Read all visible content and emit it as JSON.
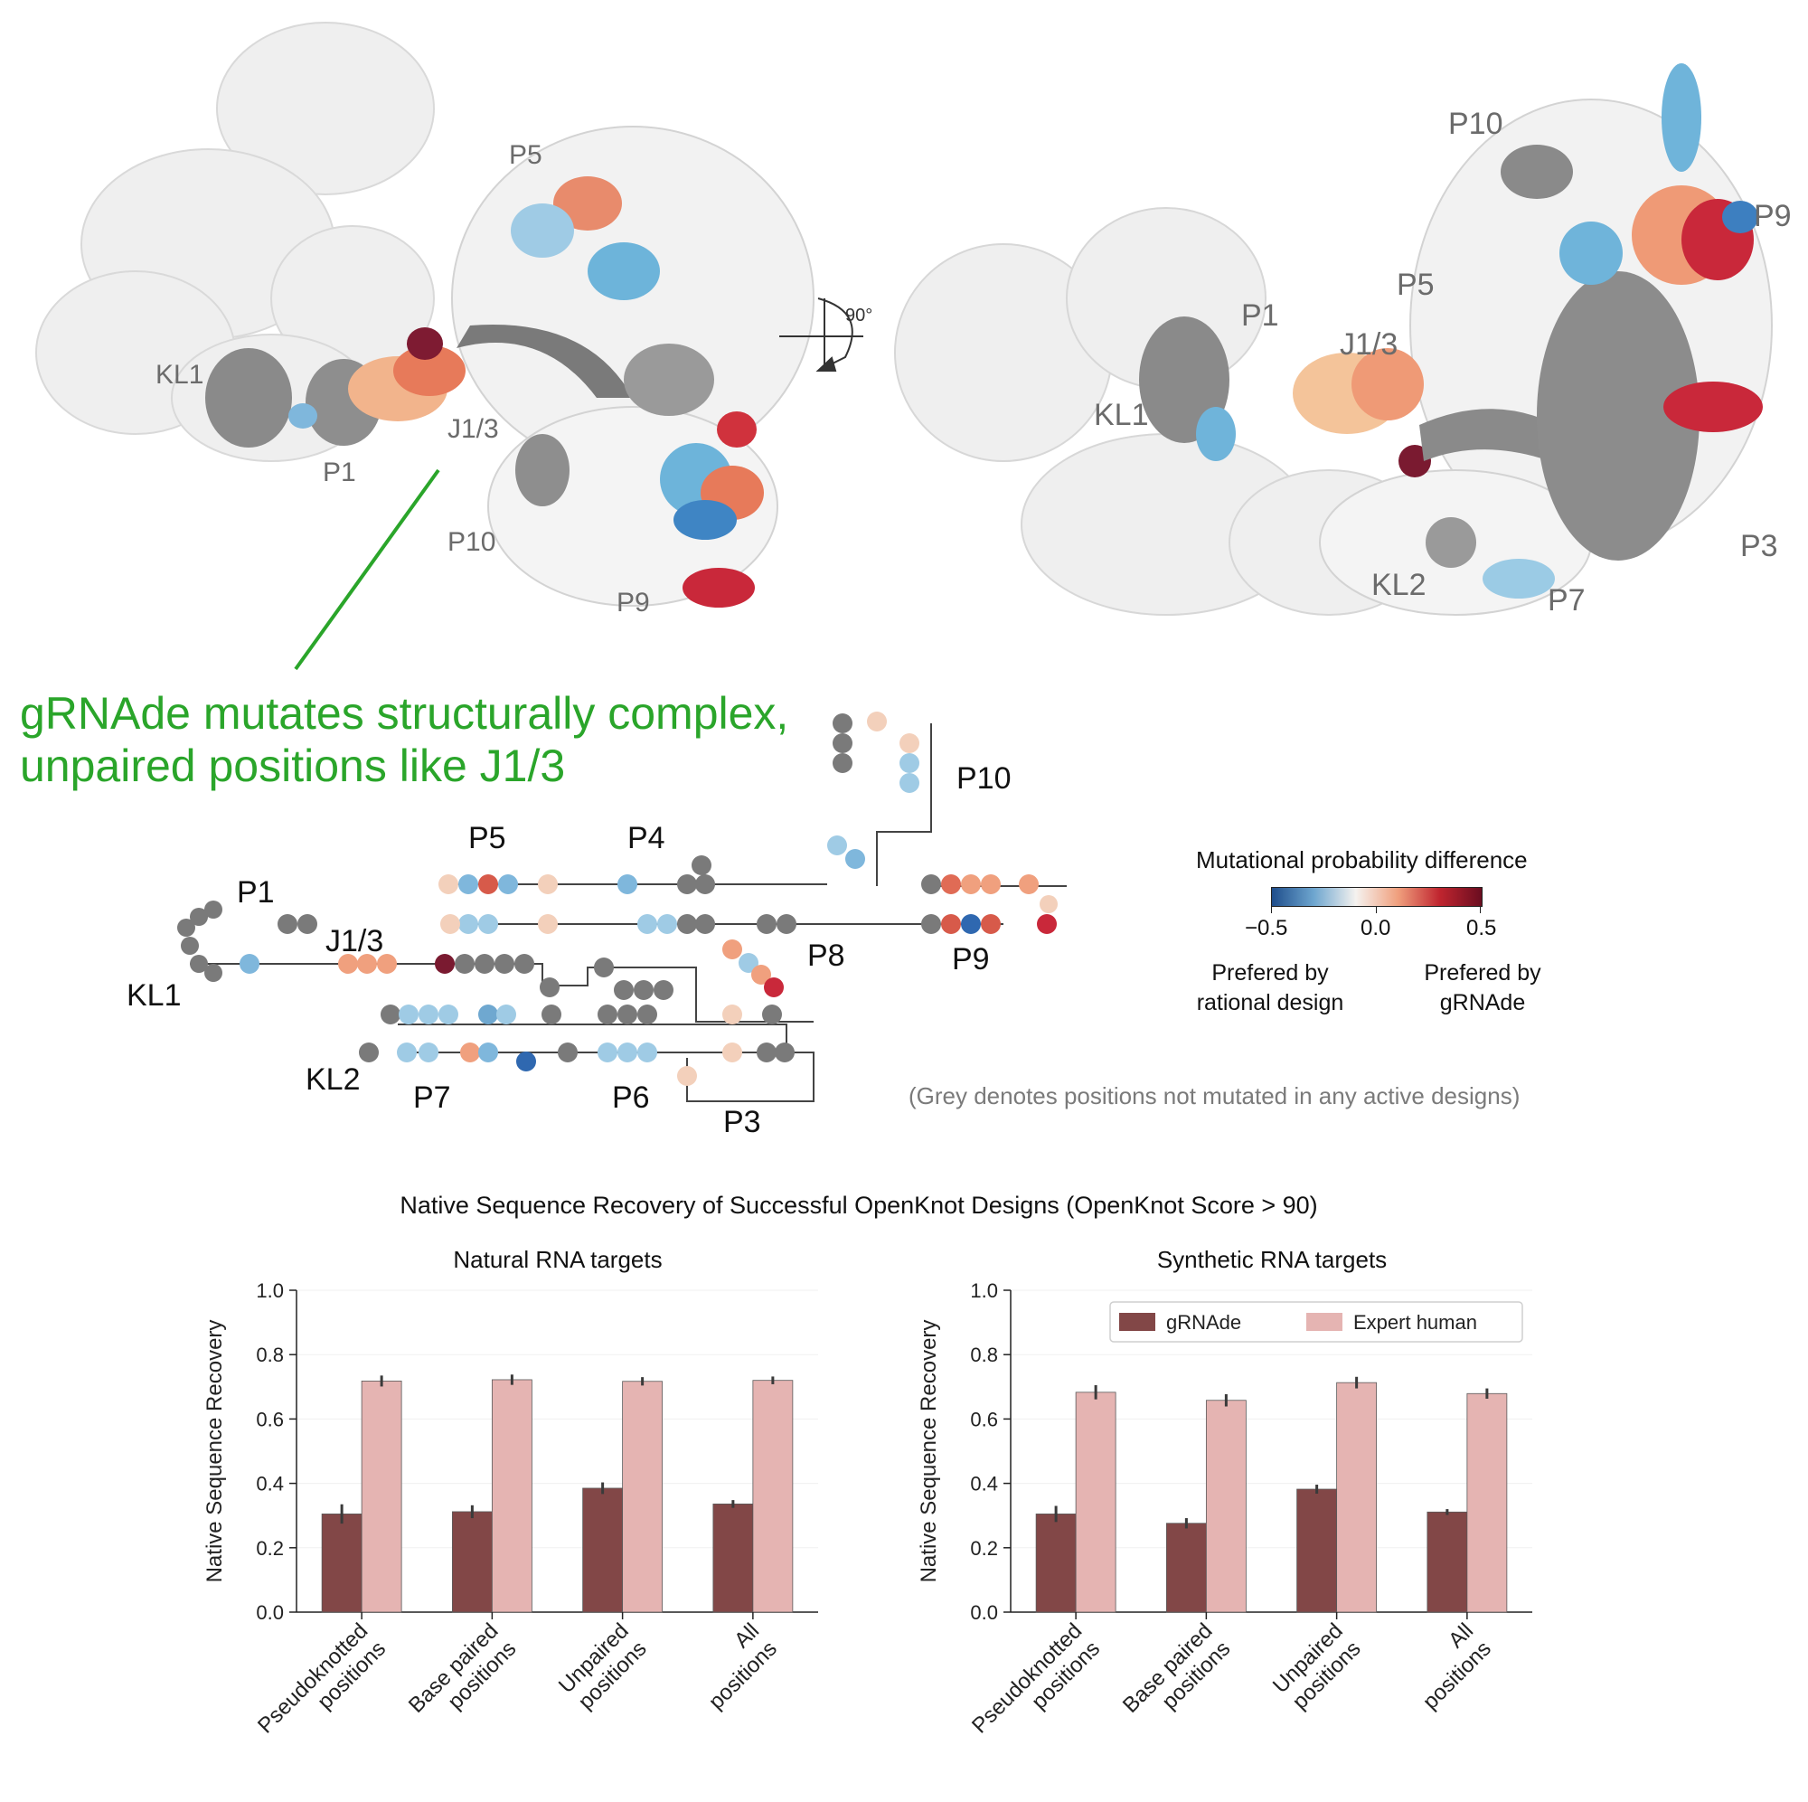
{
  "panel_a": {
    "left_labels": [
      "P5",
      "KL1",
      "J1/3",
      "P1",
      "P10",
      "P9"
    ],
    "right_labels": [
      "P10",
      "P9",
      "P5",
      "P1",
      "J1/3",
      "KL1",
      "KL2",
      "P7",
      "P3"
    ],
    "rotation": "90°",
    "callout": [
      "gRNAde mutates structurally complex,",
      "unpaired positions like J1/3"
    ]
  },
  "panel_b": {
    "region_labels": [
      "P1",
      "J1/3",
      "KL1",
      "P5",
      "P4",
      "P10",
      "P8",
      "P9",
      "KL2",
      "P7",
      "P6",
      "P3"
    ],
    "legend": {
      "title": "Mutational probability difference",
      "ticks": [
        "−0.5",
        "0.0",
        "0.5"
      ],
      "left_caption": [
        "Prefered by",
        "rational design"
      ],
      "right_caption": [
        "Prefered by",
        "gRNAde"
      ],
      "note": "(Grey denotes positions not mutated in any active designs)",
      "colors": [
        "#1f4e8c",
        "#6ea6cf",
        "#f5f2ef",
        "#f0a07e",
        "#c0252f",
        "#6a0d20"
      ]
    }
  },
  "panel_c": {
    "main_title": "Native Sequence Recovery of Successful OpenKnot Designs (OpenKnot Score > 90)",
    "colors": {
      "grnade": "#824747",
      "human": "#e5b4b2"
    }
  },
  "chart_data": [
    {
      "type": "bar",
      "title": "Natural RNA targets",
      "ylabel": "Native Sequence Recovery",
      "ylim": [
        0,
        1.0
      ],
      "yticks": [
        "0.0",
        "0.2",
        "0.4",
        "0.6",
        "0.8",
        "1.0"
      ],
      "categories": [
        [
          "Pseudoknotted",
          "positions"
        ],
        [
          "Base paired",
          "positions"
        ],
        [
          "Unpaired",
          "positions"
        ],
        [
          "All",
          "positions"
        ]
      ],
      "series": [
        {
          "name": "gRNAde",
          "values": [
            0.305,
            0.312,
            0.385,
            0.336
          ],
          "errors": [
            0.03,
            0.02,
            0.018,
            0.012
          ]
        },
        {
          "name": "Expert human",
          "values": [
            0.718,
            0.722,
            0.717,
            0.72
          ],
          "errors": [
            0.017,
            0.016,
            0.013,
            0.012
          ]
        }
      ],
      "legend": "none"
    },
    {
      "type": "bar",
      "title": "Synthetic RNA targets",
      "ylabel": "Native Sequence Recovery",
      "ylim": [
        0,
        1.0
      ],
      "yticks": [
        "0.0",
        "0.2",
        "0.4",
        "0.6",
        "0.8",
        "1.0"
      ],
      "categories": [
        [
          "Pseudoknotted",
          "positions"
        ],
        [
          "Base paired",
          "positions"
        ],
        [
          "Unpaired",
          "positions"
        ],
        [
          "All",
          "positions"
        ]
      ],
      "series": [
        {
          "name": "gRNAde",
          "values": [
            0.305,
            0.276,
            0.382,
            0.311
          ],
          "errors": [
            0.025,
            0.016,
            0.014,
            0.009
          ]
        },
        {
          "name": "Expert human",
          "values": [
            0.683,
            0.658,
            0.713,
            0.679
          ],
          "errors": [
            0.022,
            0.019,
            0.018,
            0.016
          ]
        }
      ],
      "legend": "top-right"
    }
  ]
}
